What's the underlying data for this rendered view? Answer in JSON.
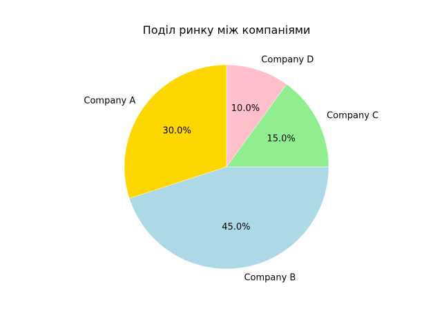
{
  "chart_data": {
    "type": "pie",
    "title": "Поділ ринку між компаніями",
    "categories": [
      "Company A",
      "Company B",
      "Company C",
      "Company D"
    ],
    "values": [
      30.0,
      45.0,
      15.0,
      10.0
    ],
    "value_labels": [
      "30.0%",
      "45.0%",
      "15.0%",
      "10.0%"
    ],
    "colors": [
      "#ffd700",
      "#add8e6",
      "#90ee90",
      "#ffc0cb"
    ],
    "start_angle_deg": 90,
    "direction": "counterclockwise"
  }
}
